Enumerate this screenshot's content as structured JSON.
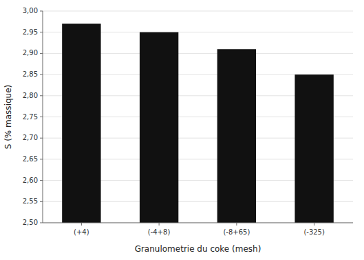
{
  "chart_data": {
    "type": "bar",
    "categories": [
      "(+4)",
      "(-4+8)",
      "(-8+65)",
      "(-325)"
    ],
    "values": [
      2.97,
      2.95,
      2.91,
      2.85
    ],
    "color": "#111111",
    "xlabel": "Granulometrie du coke (mesh)",
    "ylabel": "S (% massique)",
    "ylim": [
      2.5,
      3.0
    ],
    "yticks": [
      {
        "value": 2.5,
        "label": "2,50"
      },
      {
        "value": 2.55,
        "label": "2,55"
      },
      {
        "value": 2.6,
        "label": "2,60"
      },
      {
        "value": 2.65,
        "label": "2,65"
      },
      {
        "value": 2.7,
        "label": "2,70"
      },
      {
        "value": 2.75,
        "label": "2,75"
      },
      {
        "value": 2.8,
        "label": "2,80"
      },
      {
        "value": 2.85,
        "label": "2,85"
      },
      {
        "value": 2.9,
        "label": "2,90"
      },
      {
        "value": 2.95,
        "label": "2,95"
      },
      {
        "value": 3.0,
        "label": "3,00"
      }
    ],
    "grid": true
  }
}
